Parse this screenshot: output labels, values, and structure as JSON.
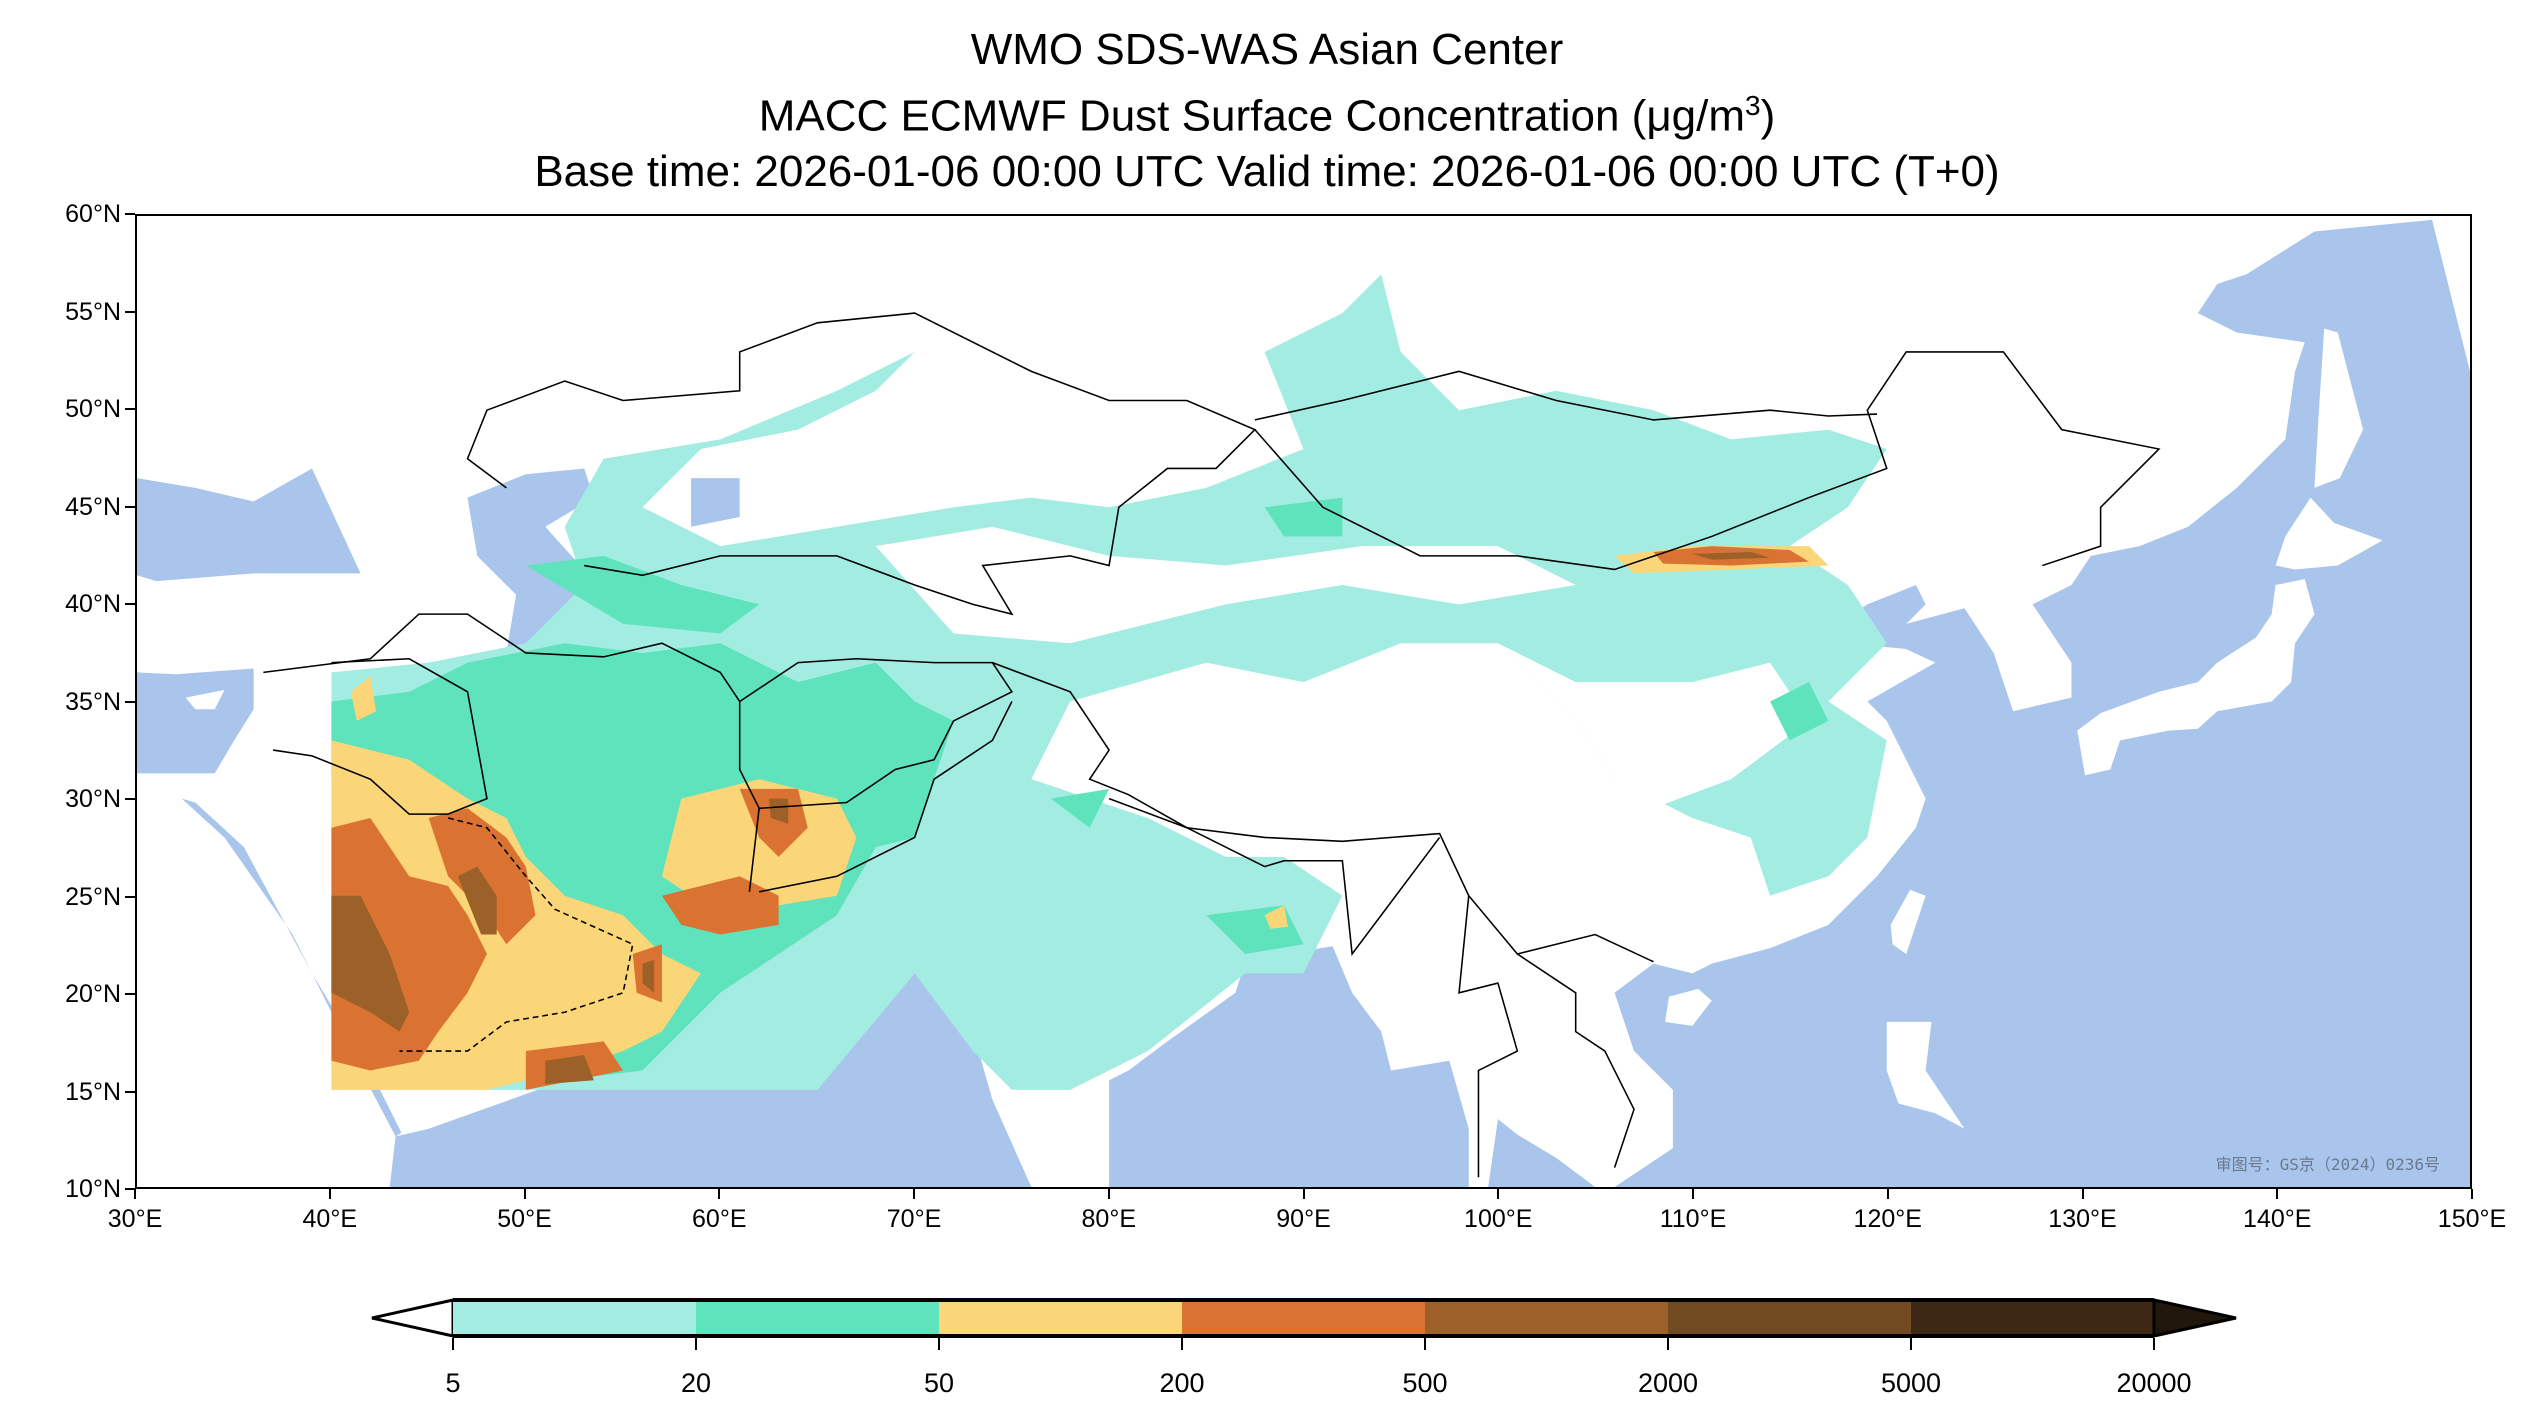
{
  "chart_data": {
    "type": "heatmap",
    "title": "WMO SDS-WAS Asian Center",
    "subtitle": "MACC ECMWF Dust Surface Concentration (μg/m",
    "subtitle_unit_sup": "3",
    "subtitle_close": ")",
    "time_line": "Base time: 2026-01-06 00:00 UTC Valid time: 2026-01-06 00:00 UTC (T+0)",
    "xlim": [
      30,
      150
    ],
    "ylim": [
      10,
      60
    ],
    "x_ticks": [
      30,
      40,
      50,
      60,
      70,
      80,
      90,
      100,
      110,
      120,
      130,
      140,
      150
    ],
    "x_tick_labels": [
      "30°E",
      "40°E",
      "50°E",
      "60°E",
      "70°E",
      "80°E",
      "90°E",
      "100°E",
      "110°E",
      "120°E",
      "130°E",
      "140°E",
      "150°E"
    ],
    "y_ticks": [
      10,
      15,
      20,
      25,
      30,
      35,
      40,
      45,
      50,
      55,
      60
    ],
    "y_tick_labels": [
      "10°N",
      "15°N",
      "20°N",
      "25°N",
      "30°N",
      "35°N",
      "40°N",
      "45°N",
      "50°N",
      "55°N",
      "60°N"
    ],
    "colorbar": {
      "levels": [
        5,
        20,
        50,
        200,
        500,
        2000,
        5000,
        20000
      ],
      "level_labels": [
        "5",
        "20",
        "50",
        "200",
        "500",
        "2000",
        "5000",
        "20000"
      ],
      "colors": [
        "#a3ece2",
        "#5ee3bd",
        "#fad679",
        "#da7332",
        "#9c6128",
        "#714a22",
        "#3c2815"
      ],
      "under_color": "#ffffff",
      "over_color": "#21160c",
      "extend": "both"
    },
    "ocean_color": "#a9c5ec",
    "watermark": "审图号：GS京（2024）0236号"
  }
}
